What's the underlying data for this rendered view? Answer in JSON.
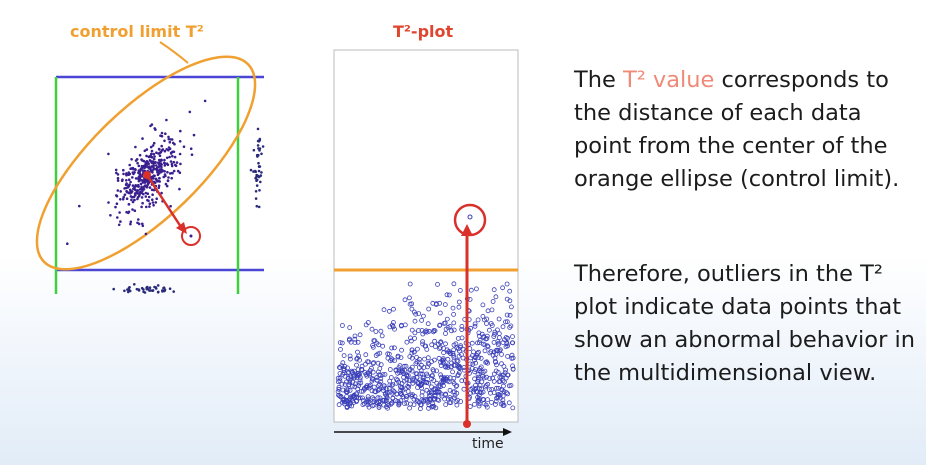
{
  "left_figure": {
    "label": "control limit T²"
  },
  "t2_plot": {
    "title": "T²-plot",
    "x_axis_label": "time"
  },
  "explanation": {
    "p1_before": "The ",
    "p1_highlight": "T² value",
    "p1_after": " corresponds to the distance of each data point from the center of the orange ellipse (control limit).",
    "p2": "Therefore, outliers in the T² plot indicate data points that show an abnormal behavior in the multidimensional view."
  },
  "colors": {
    "orange": "#f0a030",
    "red": "#d9302a",
    "highlight": "#f08a78",
    "cluster": "#3a1f8f",
    "blue_limit": "#4b45d6",
    "green_limit": "#3ecf3e",
    "points": "#3a3fb8"
  }
}
